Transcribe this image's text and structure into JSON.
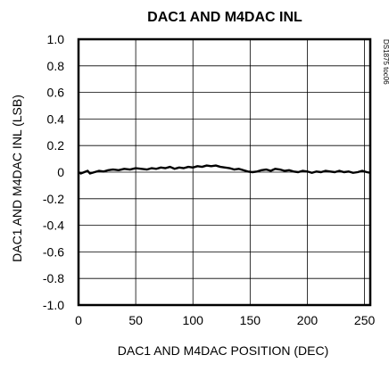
{
  "chart_data": {
    "type": "line",
    "title": "DAC1 AND M4DAC INL",
    "xlabel": "DAC1 AND M4DAC POSITION (DEC)",
    "ylabel": "DAC1 AND M4DAC INL (LSB)",
    "figure_code": "DS1875 toc06",
    "xlim": [
      0,
      255
    ],
    "ylim": [
      -1.0,
      1.0
    ],
    "x_ticks": [
      0,
      50,
      100,
      150,
      200,
      250
    ],
    "y_ticks": [
      -1.0,
      -0.8,
      -0.6,
      -0.4,
      -0.2,
      0,
      0.2,
      0.4,
      0.6,
      0.8,
      1.0
    ],
    "x_tick_labels": [
      "0",
      "50",
      "100",
      "150",
      "200",
      "250"
    ],
    "y_tick_labels": [
      "-1.0",
      "-0.8",
      "-0.6",
      "-0.4",
      "-0.2",
      "0",
      "0.2",
      "0.4",
      "0.6",
      "0.8",
      "1.0"
    ],
    "grid": true,
    "series": [
      {
        "x": [
          0,
          2,
          5,
          8,
          10,
          14,
          18,
          22,
          26,
          30,
          35,
          40,
          45,
          50,
          55,
          60,
          64,
          68,
          72,
          76,
          80,
          84,
          88,
          92,
          96,
          100,
          104,
          108,
          112,
          116,
          120,
          124,
          128,
          132,
          136,
          140,
          144,
          148,
          152,
          156,
          160,
          164,
          168,
          172,
          176,
          180,
          184,
          188,
          192,
          196,
          200,
          204,
          208,
          212,
          216,
          220,
          224,
          228,
          232,
          236,
          240,
          244,
          248,
          252,
          255
        ],
        "y": [
          0.0,
          -0.01,
          0.0,
          0.01,
          -0.01,
          0.0,
          0.01,
          0.005,
          0.015,
          0.02,
          0.015,
          0.025,
          0.02,
          0.03,
          0.025,
          0.02,
          0.03,
          0.025,
          0.035,
          0.03,
          0.04,
          0.025,
          0.035,
          0.03,
          0.04,
          0.035,
          0.045,
          0.04,
          0.05,
          0.045,
          0.05,
          0.04,
          0.035,
          0.03,
          0.02,
          0.025,
          0.015,
          0.005,
          0.0,
          0.005,
          0.015,
          0.02,
          0.01,
          0.025,
          0.02,
          0.01,
          0.015,
          0.005,
          0.0,
          0.01,
          0.005,
          -0.005,
          0.005,
          0.0,
          0.01,
          0.005,
          0.0,
          0.01,
          0.0,
          0.005,
          -0.005,
          0.0,
          0.01,
          0.0,
          -0.005
        ]
      }
    ]
  }
}
